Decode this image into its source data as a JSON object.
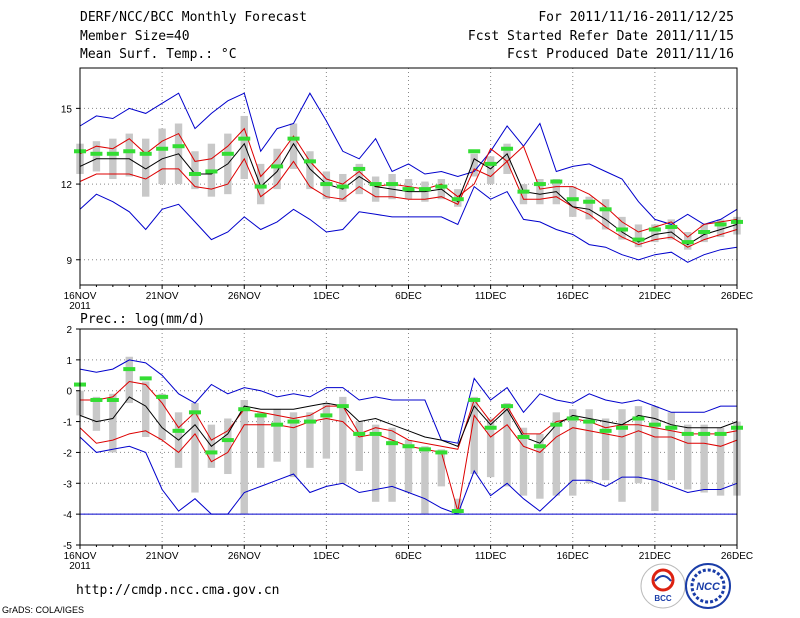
{
  "header": {
    "title": "DERF/NCC/BCC Monthly Forecast",
    "member_size": "Member Size=40",
    "variable": "Mean Surf. Temp.: °C",
    "period": "For 2011/11/16-2011/12/25",
    "refer_date": "Fcst Started Refer Date 2011/11/15",
    "produced_date": "Fcst Produced Date 2011/11/16"
  },
  "footer": {
    "url": "http://cmdp.ncc.cma.gov.cn",
    "grads": "GrADS: COLA/IGES",
    "logo_bcc": "BCC",
    "logo_ncc": "NCC"
  },
  "colors": {
    "envelope": "#0000cc",
    "band": "#dd0000",
    "mean": "#000000",
    "control": "#33dd33",
    "box": "#c8c8c8",
    "grid": "#888888"
  },
  "chart_data": [
    {
      "type": "line",
      "title": "Mean Surf. Temp.: °C",
      "x_labels": [
        "16NOV",
        "21NOV",
        "26NOV",
        "1DEC",
        "6DEC",
        "11DEC",
        "16DEC",
        "21DEC",
        "26DEC"
      ],
      "x_year_label": "2011",
      "x_label_days": [
        0,
        5,
        10,
        15,
        20,
        25,
        30,
        35,
        40
      ],
      "xlim": [
        0,
        40
      ],
      "ylim": [
        8,
        16.6
      ],
      "y_ticks": [
        9,
        12,
        15
      ],
      "grid": true,
      "series": [
        {
          "name": "max",
          "values": [
            14.3,
            14.7,
            14.6,
            15.0,
            14.8,
            15.2,
            15.6,
            14.2,
            14.8,
            15.3,
            15.6,
            13.3,
            14.2,
            14.4,
            15.6,
            14.5,
            13.3,
            13.0,
            13.8,
            12.5,
            12.8,
            12.4,
            12.5,
            12.3,
            12.5,
            13.3,
            14.3,
            13.5,
            14.4,
            12.5,
            12.7,
            12.8,
            12.5,
            12.2,
            11.3,
            10.6,
            10.4,
            10.8,
            10.4,
            10.6,
            11.0
          ]
        },
        {
          "name": "q75",
          "values": [
            13.2,
            13.5,
            13.4,
            13.8,
            13.2,
            13.7,
            14.0,
            12.9,
            13.0,
            13.5,
            14.2,
            12.3,
            13.0,
            13.9,
            12.9,
            12.2,
            12.0,
            12.5,
            11.9,
            12.0,
            11.9,
            11.8,
            12.0,
            11.5,
            12.0,
            13.4,
            12.9,
            13.5,
            11.8,
            11.9,
            11.9,
            11.6,
            11.1,
            10.5,
            10.1,
            10.3,
            10.5,
            9.9,
            10.4,
            10.5,
            10.6
          ]
        },
        {
          "name": "mean",
          "values": [
            12.7,
            13.0,
            13.0,
            13.0,
            12.6,
            13.0,
            13.2,
            12.4,
            12.4,
            12.8,
            13.6,
            11.9,
            12.5,
            13.6,
            12.6,
            12.0,
            11.8,
            12.3,
            11.9,
            11.8,
            11.7,
            11.7,
            11.8,
            11.3,
            13.0,
            12.6,
            13.2,
            11.7,
            11.6,
            11.7,
            11.1,
            11.0,
            10.6,
            10.1,
            9.7,
            10.0,
            10.1,
            9.6,
            10.0,
            10.2,
            10.4
          ]
        },
        {
          "name": "q25",
          "values": [
            12.1,
            12.4,
            12.4,
            12.4,
            12.2,
            12.6,
            12.6,
            11.9,
            11.8,
            12.0,
            13.0,
            11.5,
            12.0,
            12.9,
            11.9,
            11.5,
            11.4,
            11.9,
            11.5,
            11.5,
            11.4,
            11.4,
            11.5,
            11.2,
            12.6,
            12.3,
            12.9,
            11.4,
            11.4,
            11.5,
            11.1,
            10.8,
            10.3,
            9.9,
            9.6,
            9.8,
            9.9,
            9.5,
            9.8,
            10.0,
            10.2
          ]
        },
        {
          "name": "min",
          "values": [
            11.0,
            11.6,
            11.3,
            10.9,
            10.2,
            11.0,
            11.2,
            10.5,
            9.8,
            10.1,
            10.7,
            10.2,
            10.5,
            11.0,
            10.6,
            10.1,
            10.2,
            10.9,
            10.8,
            10.7,
            10.7,
            10.7,
            10.7,
            10.4,
            11.9,
            11.4,
            11.7,
            10.6,
            10.5,
            10.2,
            10.0,
            9.6,
            9.5,
            9.2,
            9.0,
            9.2,
            9.3,
            8.9,
            9.2,
            9.4,
            9.5
          ]
        },
        {
          "name": "box_top",
          "values": [
            13.6,
            13.7,
            13.8,
            14.0,
            13.8,
            14.2,
            14.4,
            13.3,
            13.6,
            14.0,
            14.7,
            12.8,
            13.4,
            14.4,
            13.3,
            12.5,
            12.4,
            12.8,
            12.3,
            12.4,
            12.2,
            12.1,
            12.2,
            11.8,
            13.2,
            13.1,
            13.6,
            12.0,
            12.2,
            12.2,
            11.9,
            11.5,
            11.4,
            10.7,
            10.4,
            10.4,
            10.6,
            10.1,
            10.4,
            10.6,
            10.7
          ]
        },
        {
          "name": "box_bottom",
          "values": [
            12.4,
            12.5,
            12.2,
            12.3,
            11.5,
            12.0,
            12.0,
            11.8,
            11.5,
            11.6,
            12.2,
            11.2,
            11.8,
            12.6,
            11.8,
            11.4,
            11.3,
            11.6,
            11.3,
            11.4,
            11.4,
            11.3,
            11.4,
            11.1,
            12.3,
            12.0,
            12.4,
            11.2,
            11.2,
            11.2,
            10.7,
            10.6,
            10.2,
            9.8,
            9.5,
            9.7,
            9.8,
            9.4,
            9.7,
            9.9,
            10.0
          ]
        },
        {
          "name": "control",
          "values": [
            13.3,
            13.2,
            13.2,
            13.3,
            13.2,
            13.4,
            13.5,
            12.4,
            12.5,
            13.2,
            13.8,
            11.9,
            12.7,
            13.8,
            12.9,
            12.0,
            11.9,
            12.6,
            12.0,
            12.0,
            11.8,
            11.8,
            11.9,
            11.4,
            13.3,
            12.8,
            13.4,
            11.7,
            12.0,
            12.1,
            11.4,
            11.3,
            11.0,
            10.2,
            9.8,
            10.2,
            10.3,
            9.7,
            10.1,
            10.4,
            10.5
          ]
        }
      ]
    },
    {
      "type": "line",
      "title": "Prec.: log(mm/d)",
      "x_labels": [
        "16NOV",
        "21NOV",
        "26NOV",
        "1DEC",
        "6DEC",
        "11DEC",
        "16DEC",
        "21DEC",
        "26DEC"
      ],
      "x_year_label": "2011",
      "x_label_days": [
        0,
        5,
        10,
        15,
        20,
        25,
        30,
        35,
        40
      ],
      "xlim": [
        0,
        40
      ],
      "ylim": [
        -5,
        2
      ],
      "y_ticks": [
        -5,
        -4,
        -3,
        -2,
        -1,
        0,
        1,
        2
      ],
      "grid": true,
      "series": [
        {
          "name": "max",
          "values": [
            0.7,
            0.6,
            0.7,
            1.0,
            0.9,
            0.5,
            -0.1,
            -0.4,
            0.2,
            -0.1,
            0.1,
            0.0,
            -0.2,
            -0.1,
            -0.2,
            0.1,
            0.1,
            -0.3,
            -0.2,
            -0.3,
            -0.3,
            -0.3,
            -1.6,
            -1.7,
            0.4,
            -0.3,
            0.1,
            -0.7,
            -0.1,
            -0.3,
            -0.4,
            -0.1,
            -0.3,
            -0.4,
            -0.3,
            -0.5,
            -0.7,
            -0.7,
            -0.7,
            -0.5,
            -0.5
          ]
        },
        {
          "name": "q75",
          "values": [
            -0.3,
            -0.3,
            -0.2,
            0.3,
            0.2,
            -0.4,
            -1.2,
            -0.7,
            -1.6,
            -1.3,
            -0.6,
            -0.7,
            -0.8,
            -0.9,
            -0.8,
            -0.5,
            -0.5,
            -1.4,
            -1.2,
            -1.3,
            -1.6,
            -1.7,
            -1.8,
            -1.9,
            -0.3,
            -1.0,
            -0.5,
            -1.4,
            -1.4,
            -1.0,
            -0.9,
            -1.0,
            -1.2,
            -1.1,
            -1.1,
            -1.2,
            -1.3,
            -1.4,
            -1.4,
            -1.4,
            -1.3
          ]
        },
        {
          "name": "mean",
          "values": [
            -0.8,
            -1.0,
            -0.9,
            -0.2,
            -0.5,
            -1.2,
            -1.6,
            -1.1,
            -1.8,
            -1.4,
            -0.5,
            -0.6,
            -0.6,
            -0.6,
            -0.5,
            -0.4,
            -0.5,
            -1.0,
            -0.9,
            -1.1,
            -1.3,
            -1.5,
            -1.6,
            -1.8,
            -0.5,
            -1.1,
            -0.6,
            -1.5,
            -1.7,
            -1.1,
            -0.8,
            -0.9,
            -1.0,
            -1.1,
            -0.8,
            -0.9,
            -1.1,
            -1.2,
            -1.2,
            -1.2,
            -1.0
          ]
        },
        {
          "name": "q25",
          "values": [
            -1.2,
            -1.7,
            -1.6,
            -1.4,
            -1.3,
            -1.6,
            -2.0,
            -1.4,
            -2.3,
            -2.0,
            -1.1,
            -1.1,
            -1.1,
            -1.2,
            -1.0,
            -0.9,
            -1.0,
            -1.5,
            -1.4,
            -1.6,
            -1.8,
            -1.9,
            -2.0,
            -3.9,
            -0.8,
            -1.5,
            -1.1,
            -1.8,
            -2.0,
            -1.5,
            -1.2,
            -1.3,
            -1.4,
            -1.5,
            -1.3,
            -1.5,
            -1.5,
            -1.7,
            -1.7,
            -1.8,
            -1.6
          ]
        },
        {
          "name": "min",
          "values": [
            -1.5,
            -2.0,
            -1.9,
            -1.8,
            -2.0,
            -3.2,
            -3.9,
            -3.5,
            -4.0,
            -4.0,
            -3.3,
            -3.1,
            -2.9,
            -2.7,
            -3.3,
            -3.1,
            -3.0,
            -3.3,
            -3.2,
            -3.1,
            -3.3,
            -3.5,
            -3.8,
            -4.0,
            -2.6,
            -3.4,
            -3.0,
            -3.5,
            -3.9,
            -3.4,
            -2.9,
            -2.9,
            -3.1,
            -2.8,
            -2.8,
            -2.9,
            -3.1,
            -3.3,
            -3.2,
            -3.2,
            -3.0
          ]
        },
        {
          "name": "box_top",
          "values": [
            0.0,
            -0.2,
            -0.1,
            1.1,
            0.3,
            -0.1,
            -0.7,
            -0.4,
            -1.1,
            -0.9,
            -0.3,
            -0.7,
            -0.6,
            -0.7,
            -0.7,
            -0.4,
            -0.2,
            -1.0,
            -1.1,
            -1.2,
            -1.6,
            -1.8,
            -1.9,
            -3.5,
            -0.2,
            -0.9,
            -0.4,
            -1.2,
            -1.4,
            -0.7,
            -0.6,
            -0.6,
            -0.9,
            -0.6,
            -0.5,
            -0.5,
            -0.7,
            -1.1,
            -1.1,
            -1.2,
            -1.0
          ]
        },
        {
          "name": "box_bottom",
          "values": [
            -0.8,
            -1.3,
            -2.0,
            -0.4,
            -1.5,
            -1.6,
            -2.5,
            -3.3,
            -2.5,
            -2.7,
            -4.0,
            -2.5,
            -2.3,
            -2.8,
            -2.5,
            -2.2,
            -3.0,
            -2.6,
            -3.6,
            -3.6,
            -3.3,
            -4.0,
            -3.1,
            -4.0,
            -2.7,
            -2.8,
            -3.1,
            -3.4,
            -3.5,
            -3.4,
            -3.4,
            -3.0,
            -2.9,
            -3.6,
            -3.0,
            -3.9,
            -2.9,
            -3.2,
            -3.3,
            -3.4,
            -3.4
          ]
        },
        {
          "name": "control",
          "values": [
            0.2,
            -0.3,
            -0.3,
            0.7,
            0.4,
            -0.2,
            -1.3,
            -0.7,
            -2.0,
            -1.6,
            -0.6,
            -0.8,
            -1.1,
            -1.0,
            -1.0,
            -0.8,
            -0.5,
            -1.4,
            -1.4,
            -1.7,
            -1.8,
            -1.9,
            -2.0,
            -3.9,
            -0.3,
            -1.2,
            -0.5,
            -1.5,
            -1.8,
            -1.1,
            -0.9,
            -1.0,
            -1.3,
            -1.2,
            -0.9,
            -1.1,
            -1.2,
            -1.4,
            -1.4,
            -1.4,
            -1.2
          ]
        },
        {
          "name": "floor",
          "values": [
            -4,
            -4,
            -4,
            -4,
            -4,
            -4,
            -4,
            -4,
            -4,
            -4,
            -4,
            -4,
            -4,
            -4,
            -4,
            -4,
            -4,
            -4,
            -4,
            -4,
            -4,
            -4,
            -4,
            -4,
            -4,
            -4,
            -4,
            -4,
            -4,
            -4,
            -4,
            -4,
            -4,
            -4,
            -4,
            -4,
            -4,
            -4,
            -4,
            -4,
            -4
          ]
        }
      ]
    }
  ]
}
